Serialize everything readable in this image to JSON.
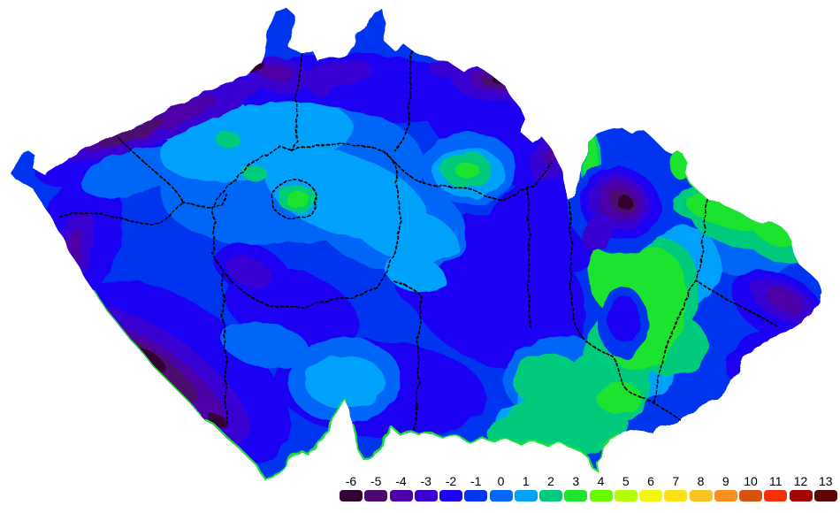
{
  "map": {
    "name": "Temperature map of the Czech Republic with regional boundaries",
    "background": "#ffffff",
    "region_boundary_color": "#000000",
    "palette": {
      "-6": "#330233",
      "-5": "#4c096e",
      "-4": "#4d00a8",
      "-3": "#3900d1",
      "-2": "#1c04f2",
      "-1": "#0334f0",
      "0": "#0566f7",
      "1": "#04a1fb",
      "2": "#00cb7d",
      "3": "#1ee42d",
      "4": "#68fb00",
      "5": "#b5fc0a",
      "6": "#f2f70d",
      "7": "#fcdf17",
      "8": "#f6c322",
      "9": "#fb8e20",
      "10": "#d4510e",
      "11": "#f52f08",
      "12": "#a30505",
      "13": "#5e0404"
    }
  },
  "legend": {
    "label_color": "#000000",
    "items": [
      {
        "label": "-6",
        "color": "#330233"
      },
      {
        "label": "-5",
        "color": "#4c096e"
      },
      {
        "label": "-4",
        "color": "#4d00a8"
      },
      {
        "label": "-3",
        "color": "#3900d1"
      },
      {
        "label": "-2",
        "color": "#1c04f2"
      },
      {
        "label": "-1",
        "color": "#0334f0"
      },
      {
        "label": "0",
        "color": "#0566f7"
      },
      {
        "label": "1",
        "color": "#04a1fb"
      },
      {
        "label": "2",
        "color": "#00cb7d"
      },
      {
        "label": "3",
        "color": "#1ee42d"
      },
      {
        "label": "4",
        "color": "#68fb00"
      },
      {
        "label": "5",
        "color": "#b5fc0a"
      },
      {
        "label": "6",
        "color": "#f2f70d"
      },
      {
        "label": "7",
        "color": "#fcdf17"
      },
      {
        "label": "8",
        "color": "#f6c322"
      },
      {
        "label": "9",
        "color": "#fb8e20"
      },
      {
        "label": "10",
        "color": "#d4510e"
      },
      {
        "label": "11",
        "color": "#f52f08"
      },
      {
        "label": "12",
        "color": "#a30505"
      },
      {
        "label": "13",
        "color": "#5e0404"
      }
    ]
  }
}
